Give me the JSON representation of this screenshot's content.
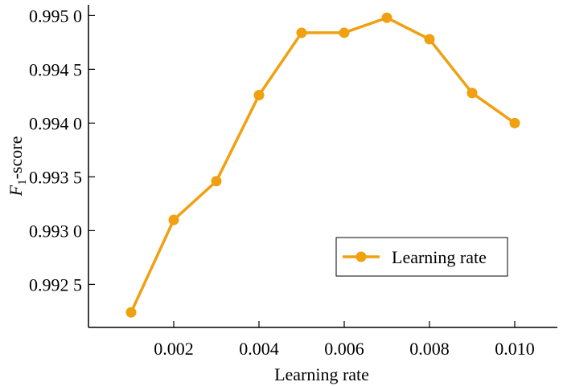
{
  "chart_data": {
    "type": "line",
    "xlabel": "Learning rate",
    "ylabel_main": "F",
    "ylabel_sub": "1",
    "ylabel_rest": "-score",
    "xlim": [
      0.0,
      0.011
    ],
    "ylim": [
      0.9921,
      0.9951
    ],
    "x_ticks": [
      0.002,
      0.004,
      0.006,
      0.008,
      0.01
    ],
    "x_tick_labels": [
      "0.002",
      "0.004",
      "0.006",
      "0.008",
      "0.010"
    ],
    "y_ticks": [
      0.9925,
      0.993,
      0.9935,
      0.994,
      0.9945,
      0.995
    ],
    "y_tick_labels": [
      "0.992 5",
      "0.993 0",
      "0.993 5",
      "0.994 0",
      "0.994 5",
      "0.995 0"
    ],
    "grid": false,
    "legend_position": "center-right",
    "series": [
      {
        "name": "Learning rate",
        "color": "#F0A010",
        "x": [
          0.001,
          0.002,
          0.003,
          0.004,
          0.005,
          0.006,
          0.007,
          0.008,
          0.009,
          0.01
        ],
        "y": [
          0.99224,
          0.9931,
          0.99346,
          0.99426,
          0.99484,
          0.99484,
          0.99498,
          0.99478,
          0.99428,
          0.994
        ]
      }
    ]
  }
}
